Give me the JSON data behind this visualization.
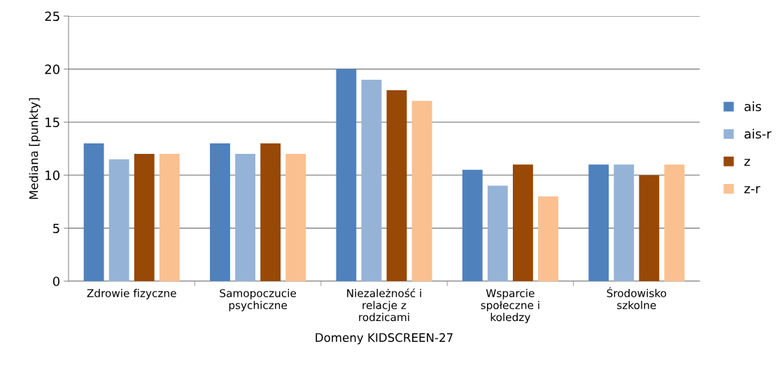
{
  "chart_data": {
    "type": "bar",
    "xlabel": "Domeny KIDSCREEN-27",
    "ylabel": "Mediana [punkty]",
    "categories": [
      "Zdrowie fizyczne",
      "Samopoczucie\npsychiczne",
      "Niezależność i\nrelacje z\nrodzicami",
      "Wsparcie\nspołeczne i\nkoledzy",
      "Środowisko\nszkolne"
    ],
    "series": [
      {
        "name": "ais",
        "color": "#4f81bd",
        "values": [
          13,
          13,
          20,
          10.5,
          11
        ]
      },
      {
        "name": "ais-r",
        "color": "#95b3d7",
        "values": [
          11.5,
          12,
          19,
          9,
          11
        ]
      },
      {
        "name": "z",
        "color": "#984807",
        "values": [
          12,
          13,
          18,
          11,
          10
        ]
      },
      {
        "name": "z-r",
        "color": "#fac090",
        "values": [
          12,
          12,
          17,
          8,
          11
        ]
      }
    ],
    "ylim": [
      0,
      25
    ],
    "yticks": [
      0,
      5,
      10,
      15,
      20,
      25
    ],
    "grid": "y",
    "legend": "right"
  }
}
